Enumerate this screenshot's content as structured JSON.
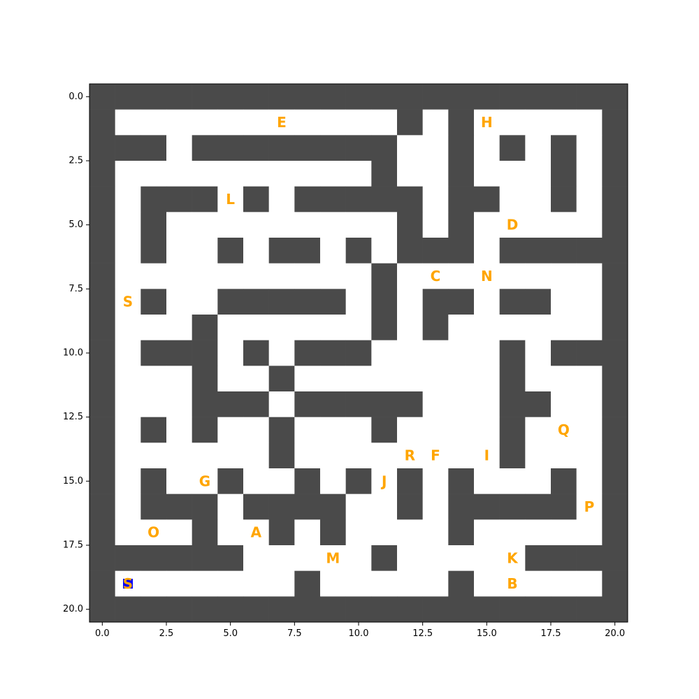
{
  "maze": {
    "rows": 21,
    "cols": 21,
    "colors": {
      "wall": "#4a4a4a",
      "open": "#ffffff",
      "letter": "#ffa500",
      "agent_fill": "#0000ff"
    },
    "grid": [
      "#####################",
      "#...........#.#.....#",
      "###.########..#.#.#.#",
      "#..........#..#...#.#",
      "#.###.#.#####.##..#.#",
      "#.#.........#.#.....#",
      "#.#..#.##.#.###.#####",
      "#..........#........#",
      "#.#..#####.#.##.##..#",
      "#...#......#.#......#",
      "#.###.#.###.....#.###",
      "#...#..#........#...#",
      "#...###.#####...##..#",
      "#.#.#..#...#....#...#",
      "#......#........#...#",
      "#.#..#..#.#.#.#...#.#",
      "#.###.####..#.#####.#",
      "#...#..#.#....#.....#",
      "######.....#.....####",
      "#.......#.....#.....#",
      "#####################"
    ],
    "letters": [
      {
        "text": "E",
        "row": 1,
        "col": 7
      },
      {
        "text": "H",
        "row": 1,
        "col": 15
      },
      {
        "text": "L",
        "row": 4,
        "col": 5
      },
      {
        "text": "D",
        "row": 5,
        "col": 16
      },
      {
        "text": "C",
        "row": 7,
        "col": 13
      },
      {
        "text": "N",
        "row": 7,
        "col": 15
      },
      {
        "text": "S",
        "row": 8,
        "col": 1
      },
      {
        "text": "Q",
        "row": 13,
        "col": 18
      },
      {
        "text": "R",
        "row": 14,
        "col": 12
      },
      {
        "text": "F",
        "row": 14,
        "col": 13
      },
      {
        "text": "I",
        "row": 14,
        "col": 15
      },
      {
        "text": "G",
        "row": 15,
        "col": 4
      },
      {
        "text": "J",
        "row": 15,
        "col": 11
      },
      {
        "text": "P",
        "row": 16,
        "col": 19
      },
      {
        "text": "O",
        "row": 17,
        "col": 2
      },
      {
        "text": "A",
        "row": 17,
        "col": 6
      },
      {
        "text": "M",
        "row": 18,
        "col": 9
      },
      {
        "text": "K",
        "row": 18,
        "col": 16
      },
      {
        "text": "B",
        "row": 19,
        "col": 16
      }
    ],
    "agent": {
      "text": "S",
      "row": 19,
      "col": 1
    },
    "x_ticks": [
      "0.0",
      "2.5",
      "5.0",
      "7.5",
      "10.0",
      "12.5",
      "15.0",
      "17.5",
      "20.0"
    ],
    "y_ticks": [
      "0.0",
      "2.5",
      "5.0",
      "7.5",
      "10.0",
      "12.5",
      "15.0",
      "17.5",
      "20.0"
    ]
  }
}
